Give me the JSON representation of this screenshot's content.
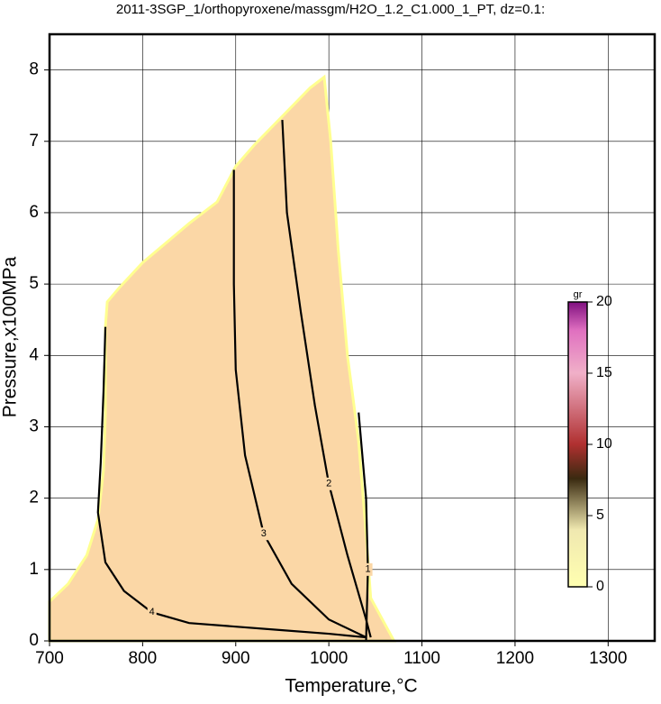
{
  "chart_data": {
    "type": "contour",
    "title": "2011-3SGP_1/orthopyroxene/massgm/H2O_1.2_C1.000_1_PT, dz=0.1:",
    "x_label": "Temperature,°C",
    "y_label": "Pressure,x100MPa",
    "xlim": [
      700,
      1350
    ],
    "ylim": [
      0,
      8.5
    ],
    "xticks": [
      700,
      800,
      900,
      1000,
      1100,
      1200,
      1300
    ],
    "yticks": [
      0,
      1,
      2,
      3,
      4,
      5,
      6,
      7,
      8
    ],
    "grid": true,
    "fill_color": "#fbd7a6",
    "field_boundary": {
      "x": [
        700,
        720,
        740,
        752,
        758,
        760,
        760,
        762,
        775,
        800,
        850,
        880,
        900,
        920,
        950,
        980,
        995,
        1002,
        1010,
        1020,
        1032,
        1040,
        1045,
        1070,
        700
      ],
      "y": [
        0.55,
        0.8,
        1.2,
        1.7,
        2.4,
        3.2,
        4.4,
        4.75,
        4.95,
        5.3,
        5.85,
        6.15,
        6.65,
        6.95,
        7.35,
        7.75,
        7.9,
        7.0,
        5.5,
        4.0,
        2.8,
        1.5,
        0.6,
        0,
        0
      ]
    },
    "contours": [
      {
        "level": 4,
        "x": [
          760,
          758,
          755,
          752,
          760,
          780,
          810,
          850,
          900,
          950,
          1000,
          1040
        ],
        "y": [
          4.4,
          3.5,
          2.5,
          1.8,
          1.1,
          0.7,
          0.4,
          0.25,
          0.2,
          0.15,
          0.1,
          0.05
        ]
      },
      {
        "level": 3,
        "x": [
          898,
          898,
          900,
          910,
          930,
          960,
          1000,
          1040
        ],
        "y": [
          6.6,
          5,
          3.8,
          2.6,
          1.5,
          0.8,
          0.3,
          0.05
        ]
      },
      {
        "level": 2,
        "x": [
          950,
          955,
          970,
          985,
          1000,
          1020,
          1040,
          1045
        ],
        "y": [
          7.3,
          6,
          4.6,
          3.3,
          2.2,
          1.2,
          0.3,
          0.05
        ]
      },
      {
        "level": 1,
        "x": [
          1032,
          1040,
          1042,
          1040
        ],
        "y": [
          3.2,
          2,
          1,
          0
        ]
      }
    ],
    "colorbar": {
      "label": "gr",
      "lim": [
        0,
        20
      ],
      "ticks": [
        0,
        5,
        10,
        15,
        20
      ]
    }
  }
}
